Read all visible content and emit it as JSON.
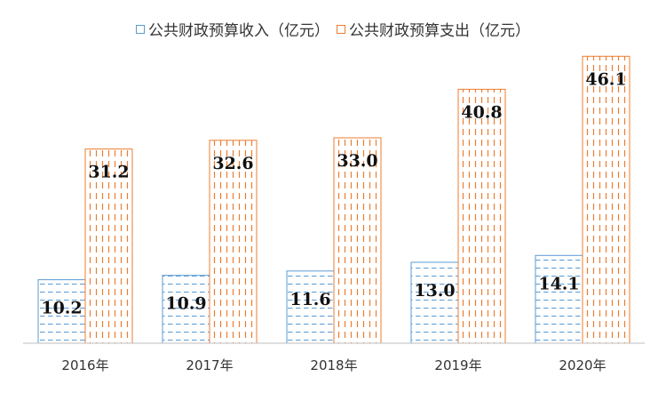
{
  "chart_data": {
    "type": "bar",
    "categories": [
      "2016年",
      "2017年",
      "2018年",
      "2019年",
      "2020年"
    ],
    "series": [
      {
        "name": "公共财政预算收入（亿元）",
        "values": [
          10.2,
          10.9,
          11.6,
          13.0,
          14.1
        ],
        "color": "#5b9bd5"
      },
      {
        "name": "公共财政预算支出（亿元）",
        "values": [
          31.2,
          32.6,
          33.0,
          40.8,
          46.1
        ],
        "color": "#ed7d31"
      }
    ],
    "data_labels": [
      [
        "10.2",
        "10.9",
        "11.6",
        "13.0",
        "14.1"
      ],
      [
        "31.2",
        "32.6",
        "33.0",
        "40.8",
        "46.1"
      ]
    ],
    "legend_position": "top",
    "grid": false,
    "ylim": [
      0,
      50
    ]
  }
}
